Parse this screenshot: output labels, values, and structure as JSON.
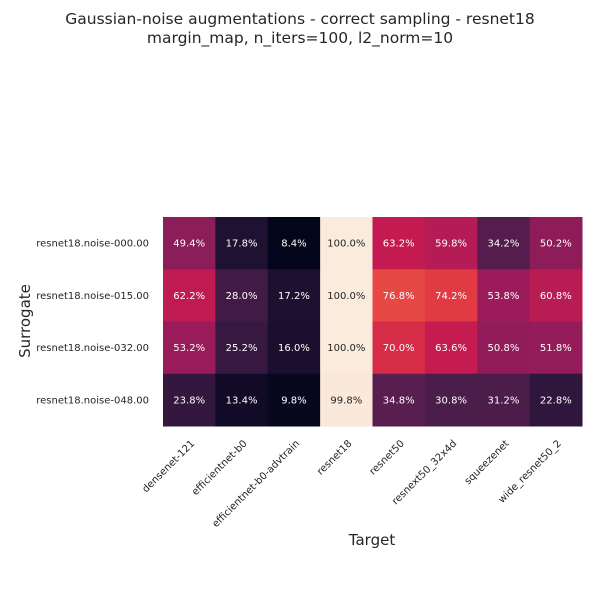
{
  "chart_data": {
    "type": "heatmap",
    "title_lines": [
      "Gaussian-noise augmentations - correct sampling - resnet18",
      "margin_map, n_iters=100, l2_norm=10"
    ],
    "xlabel": "Target",
    "ylabel": "Surrogate",
    "x_categories": [
      "densenet-121",
      "efficientnet-b0",
      "efficientnet-b0-advtrain",
      "resnet18",
      "resnet50",
      "resnext50_32x4d",
      "squeezenet",
      "wide_resnet50_2"
    ],
    "y_categories": [
      "resnet18.noise-000.00",
      "resnet18.noise-015.00",
      "resnet18.noise-032.00",
      "resnet18.noise-048.00"
    ],
    "values": [
      [
        49.4,
        17.8,
        8.4,
        100.0,
        63.2,
        59.8,
        34.2,
        50.2
      ],
      [
        62.2,
        28.0,
        17.2,
        100.0,
        76.8,
        74.2,
        53.8,
        60.8
      ],
      [
        53.2,
        25.2,
        16.0,
        100.0,
        70.0,
        63.6,
        50.8,
        51.8
      ],
      [
        23.8,
        13.4,
        9.8,
        99.8,
        34.8,
        30.8,
        31.2,
        22.8
      ]
    ],
    "labels": [
      [
        "49.4%",
        "17.8%",
        "8.4%",
        "100.0%",
        "63.2%",
        "59.8%",
        "34.2%",
        "50.2%"
      ],
      [
        "62.2%",
        "28.0%",
        "17.2%",
        "100.0%",
        "76.8%",
        "74.2%",
        "53.8%",
        "60.8%"
      ],
      [
        "53.2%",
        "25.2%",
        "16.0%",
        "100.0%",
        "70.0%",
        "63.6%",
        "50.8%",
        "51.8%"
      ],
      [
        "23.8%",
        "13.4%",
        "9.8%",
        "99.8%",
        "34.8%",
        "30.8%",
        "31.2%",
        "22.8%"
      ]
    ],
    "colormap": "rocket",
    "vmin": 8.4,
    "vmax": 100.0,
    "colorbar": false
  }
}
